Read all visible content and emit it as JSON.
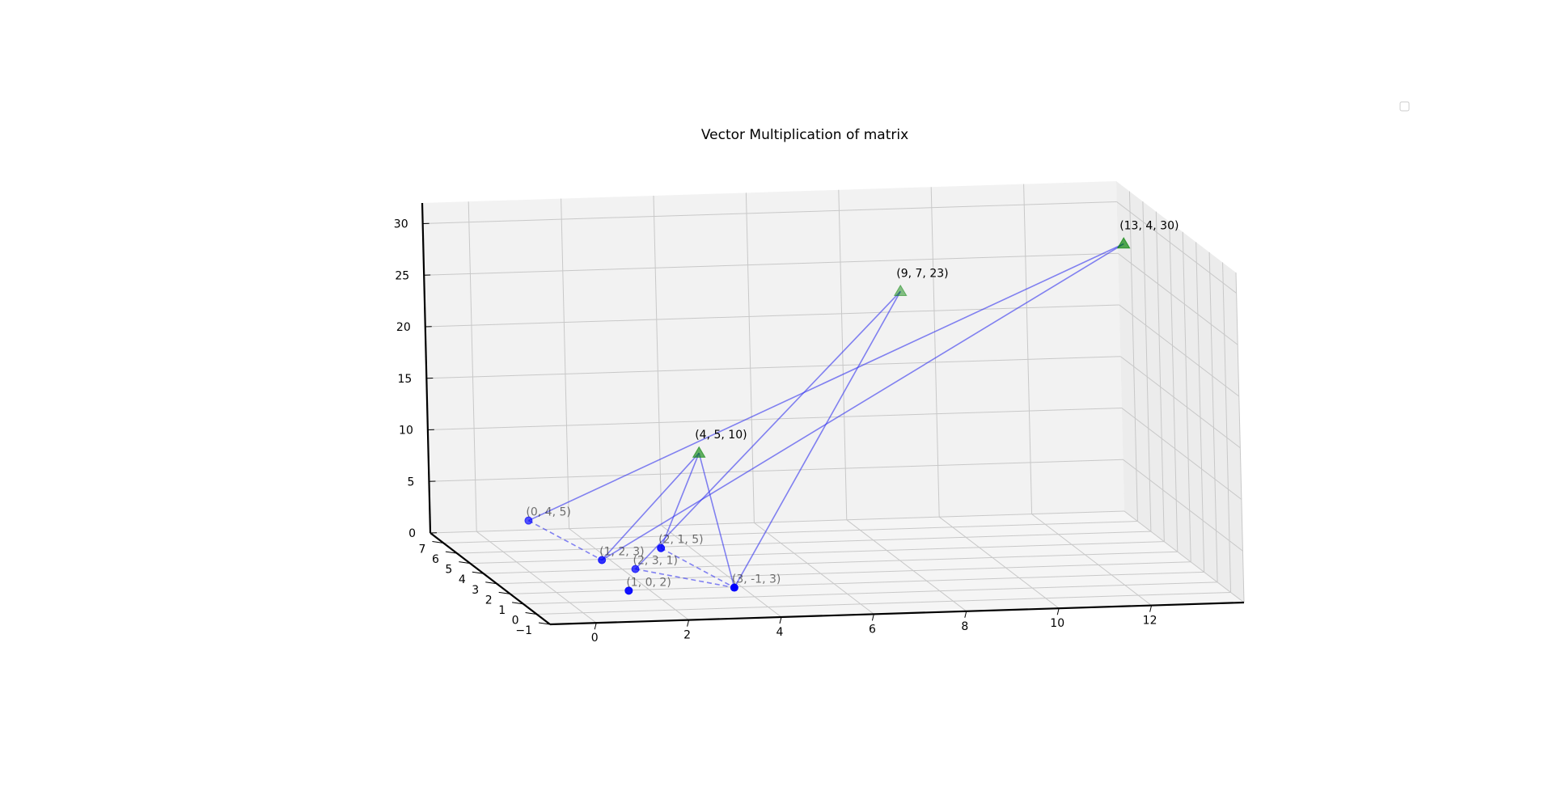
{
  "chart_data": {
    "type": "scatter",
    "title": "Vector Multiplication of matrix",
    "projection": "3d",
    "grid": true,
    "legend": "top-right",
    "xlim": [
      -1,
      14
    ],
    "ylim": [
      -1,
      8
    ],
    "zlim": [
      0,
      32
    ],
    "x_ticks": [
      "0",
      "2",
      "4",
      "6",
      "8",
      "10",
      "12"
    ],
    "y_ticks": [
      "−1",
      "0",
      "1",
      "2",
      "3",
      "4",
      "5",
      "6",
      "7"
    ],
    "z_ticks": [
      "0",
      "5",
      "10",
      "15",
      "20",
      "25",
      "30"
    ],
    "colors": {
      "input": "#0000ff",
      "output": "#008000",
      "line": "#3333ee"
    },
    "input_points": [
      {
        "label": "(0, 4, 5)",
        "coord": [
          0,
          4,
          5
        ]
      },
      {
        "label": "(1, 2, 3)",
        "coord": [
          1,
          2,
          3
        ]
      },
      {
        "label": "(2, 1, 5)",
        "coord": [
          2,
          1,
          5
        ]
      },
      {
        "label": "(2, 3, 1)",
        "coord": [
          2,
          3,
          1
        ]
      },
      {
        "label": "(1, 0, 2)",
        "coord": [
          1,
          0,
          2
        ]
      },
      {
        "label": "(3, -1, 3)",
        "coord": [
          3,
          -1,
          3
        ]
      }
    ],
    "output_points": [
      {
        "label": "(4, 5, 10)",
        "coord": [
          4,
          5,
          10
        ]
      },
      {
        "label": "(9, 7, 23)",
        "coord": [
          9,
          7,
          23
        ]
      },
      {
        "label": "(13, 4, 30)",
        "coord": [
          13,
          4,
          30
        ]
      }
    ],
    "transform_lines": [
      {
        "from": "(0, 4, 5)",
        "to": "(13, 4, 30)"
      },
      {
        "from": "(1, 2, 3)",
        "to": "(4, 5, 10)"
      },
      {
        "from": "(4, 5, 10)",
        "to": "(3, -1, 3)"
      },
      {
        "from": "(2, 1, 5)",
        "to": "(4, 5, 10)"
      },
      {
        "from": "(2, 3, 1)",
        "to": "(9, 7, 23)"
      },
      {
        "from": "(9, 7, 23)",
        "to": "(3, -1, 3)"
      },
      {
        "from": "(1, 2, 3)",
        "to": "(13, 4, 30)"
      }
    ],
    "dashed_lines": [
      {
        "from": "(0, 4, 5)",
        "to": "(1, 2, 3)"
      },
      {
        "from": "(2, 1, 5)",
        "to": "(3, -1, 3)"
      },
      {
        "from": "(2, 3, 1)",
        "to": "(3, -1, 3)"
      }
    ]
  }
}
